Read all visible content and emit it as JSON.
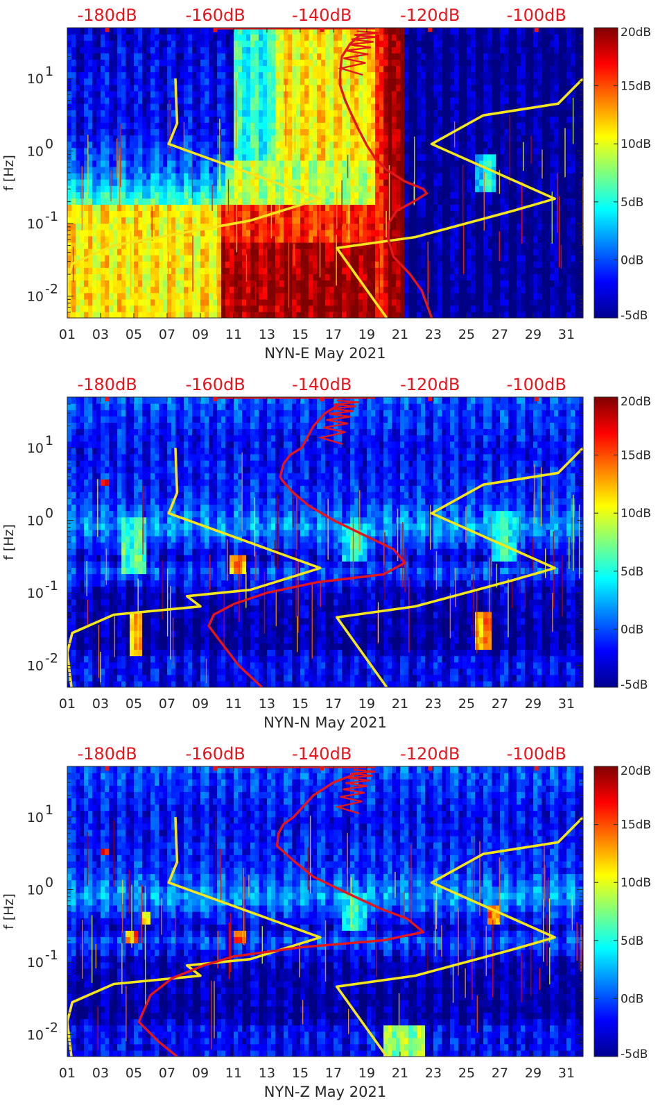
{
  "chart_data": [
    {
      "type": "heatmap",
      "title": "NYN-E May 2021",
      "xlabel": "NYN-E May 2021",
      "ylabel": "f [Hz]",
      "x_ticks": [
        "01",
        "03",
        "05",
        "07",
        "09",
        "11",
        "13",
        "15",
        "17",
        "19",
        "21",
        "23",
        "25",
        "27",
        "29",
        "31"
      ],
      "y_ticks": [
        {
          "value": 0.01,
          "base": "10",
          "exp": "-2"
        },
        {
          "value": 0.1,
          "base": "10",
          "exp": "-1"
        },
        {
          "value": 1,
          "base": "10",
          "exp": "0"
        },
        {
          "value": 10,
          "base": "10",
          "exp": "1"
        }
      ],
      "top_ticks": [
        "-180dB",
        "-160dB",
        "-140dB",
        "-120dB",
        "-100dB"
      ],
      "top_tick_days": [
        3.4,
        9.9,
        16.3,
        22.8,
        29.2
      ],
      "colorbar": {
        "ticks": [
          "20dB",
          "15dB",
          "10dB",
          "5dB",
          "0dB",
          "-5dB"
        ],
        "range_db": [
          -5,
          20
        ]
      },
      "xlim_days": [
        1,
        32
      ],
      "ylim_hz": [
        0.005,
        50
      ],
      "background_db_profile": [
        {
          "hz": 0.005,
          "db": 14
        },
        {
          "hz": 0.03,
          "db": 12
        },
        {
          "hz": 0.1,
          "db": 7
        },
        {
          "hz": 0.2,
          "db": 6
        },
        {
          "hz": 0.5,
          "db": 1
        },
        {
          "hz": 2,
          "db": -2
        },
        {
          "hz": 10,
          "db": -2
        },
        {
          "hz": 50,
          "db": -3
        }
      ],
      "regions": [
        {
          "d0": 1,
          "d1": 10.2,
          "f0": 0.005,
          "f1": 0.18,
          "db": 11
        },
        {
          "d0": 10.2,
          "d1": 13.8,
          "f0": 0.005,
          "f1": 0.055,
          "db": 19
        },
        {
          "d0": 13.8,
          "d1": 21.3,
          "f0": 0.005,
          "f1": 0.2,
          "db": 19.5
        },
        {
          "d0": 10.2,
          "d1": 21.3,
          "f0": 0.055,
          "f1": 0.2,
          "db": 16
        },
        {
          "d0": 10.5,
          "d1": 19.5,
          "f0": 0.2,
          "f1": 0.8,
          "db": 9
        },
        {
          "d0": 13.5,
          "d1": 19.5,
          "f0": 0.8,
          "f1": 50,
          "db": 11
        },
        {
          "d0": 11,
          "d1": 13.5,
          "f0": 0.8,
          "f1": 50,
          "db": 5
        },
        {
          "d0": 19.5,
          "d1": 20.3,
          "f0": 0.005,
          "f1": 50,
          "db": 17
        },
        {
          "d0": 20.3,
          "d1": 21.3,
          "f0": 0.005,
          "f1": 50,
          "db": 20
        },
        {
          "d0": 21.3,
          "d1": 32,
          "f0": 0.005,
          "f1": 50,
          "db": -4.5
        },
        {
          "d0": 25.5,
          "d1": 26.7,
          "f0": 0.3,
          "f1": 0.9,
          "db": 4
        }
      ],
      "yellow_curves": [
        {
          "name": "noise model left",
          "points": [
            [
              7.5,
              10
            ],
            [
              7.6,
              2.4
            ],
            [
              7.1,
              1.25
            ],
            [
              16.2,
              0.22
            ],
            [
              12,
              0.11
            ],
            [
              3.8,
              0.05
            ],
            [
              1.3,
              0.028
            ],
            [
              1.0,
              0.015
            ],
            [
              1.25,
              0.005
            ]
          ]
        },
        {
          "name": "noise model right",
          "points": [
            [
              32,
              10
            ],
            [
              30.5,
              4.5
            ],
            [
              26,
              3.1
            ],
            [
              22.9,
              1.25
            ],
            [
              30.3,
              0.22
            ],
            [
              27.8,
              0.15
            ],
            [
              21.9,
              0.065
            ],
            [
              17.2,
              0.046
            ],
            [
              20.2,
              0.005
            ]
          ]
        }
      ],
      "red_curve": {
        "name": "station PSD",
        "points": [
          [
            18.6,
            40
          ],
          [
            18,
            30
          ],
          [
            17.5,
            20
          ],
          [
            17.4,
            12
          ],
          [
            17.4,
            8
          ],
          [
            17.7,
            5
          ],
          [
            18,
            3.5
          ],
          [
            18.5,
            2
          ],
          [
            19,
            1.2
          ],
          [
            19.5,
            0.8
          ],
          [
            20.2,
            0.55
          ],
          [
            21.3,
            0.38
          ],
          [
            22.4,
            0.3
          ],
          [
            22.6,
            0.26
          ],
          [
            21.8,
            0.2
          ],
          [
            20.8,
            0.15
          ],
          [
            20.3,
            0.1
          ],
          [
            20.3,
            0.06
          ],
          [
            20.6,
            0.035
          ],
          [
            21.6,
            0.02
          ],
          [
            22.3,
            0.012
          ],
          [
            22.9,
            0.005
          ]
        ]
      }
    },
    {
      "type": "heatmap",
      "title": "NYN-N May 2021",
      "xlabel": "NYN-N May 2021",
      "ylabel": "f [Hz]",
      "x_ticks": [
        "01",
        "03",
        "05",
        "07",
        "09",
        "11",
        "13",
        "15",
        "17",
        "19",
        "21",
        "23",
        "25",
        "27",
        "29",
        "31"
      ],
      "y_ticks": [
        {
          "value": 0.01,
          "base": "10",
          "exp": "-2"
        },
        {
          "value": 0.1,
          "base": "10",
          "exp": "-1"
        },
        {
          "value": 1,
          "base": "10",
          "exp": "0"
        },
        {
          "value": 10,
          "base": "10",
          "exp": "1"
        }
      ],
      "top_ticks": [
        "-180dB",
        "-160dB",
        "-140dB",
        "-120dB",
        "-100dB"
      ],
      "top_tick_days": [
        3.4,
        9.9,
        16.3,
        22.8,
        29.2
      ],
      "colorbar": {
        "ticks": [
          "20dB",
          "15dB",
          "10dB",
          "5dB",
          "0dB",
          "-5dB"
        ],
        "range_db": [
          -5,
          20
        ]
      },
      "xlim_days": [
        1,
        32
      ],
      "ylim_hz": [
        0.005,
        50
      ],
      "background_db_profile": [
        {
          "hz": 0.005,
          "db": -2
        },
        {
          "hz": 0.014,
          "db": -2
        },
        {
          "hz": 0.016,
          "db": -4.5
        },
        {
          "hz": 0.1,
          "db": -3.5
        },
        {
          "hz": 0.2,
          "db": 0
        },
        {
          "hz": 0.3,
          "db": -3
        },
        {
          "hz": 0.8,
          "db": 2
        },
        {
          "hz": 2,
          "db": -1
        },
        {
          "hz": 10,
          "db": -2
        },
        {
          "hz": 50,
          "db": 0
        }
      ],
      "regions": [
        {
          "d0": 4.3,
          "d1": 5.8,
          "f0": 0.2,
          "f1": 1.2,
          "db": 6
        },
        {
          "d0": 10.8,
          "d1": 11.8,
          "f0": 0.2,
          "f1": 0.32,
          "db": 13
        },
        {
          "d0": 17.5,
          "d1": 19,
          "f0": 0.3,
          "f1": 1.0,
          "db": 5
        },
        {
          "d0": 26.5,
          "d1": 28,
          "f0": 0.3,
          "f1": 1.5,
          "db": 5
        },
        {
          "d0": 25.6,
          "d1": 26.6,
          "f0": 0.018,
          "f1": 0.05,
          "db": 13
        },
        {
          "d0": 4.8,
          "d1": 5.4,
          "f0": 0.015,
          "f1": 0.06,
          "db": 12
        },
        {
          "d0": 3.1,
          "d1": 3.5,
          "f0": 3.2,
          "f1": 3.8,
          "db": 16
        }
      ],
      "yellow_curves": [
        {
          "name": "noise model left",
          "points": [
            [
              7.5,
              10
            ],
            [
              7.6,
              2.4
            ],
            [
              7.1,
              1.25
            ],
            [
              16.2,
              0.22
            ],
            [
              12,
              0.11
            ],
            [
              8.2,
              0.09
            ],
            [
              9.0,
              0.065
            ],
            [
              3.8,
              0.05
            ],
            [
              1.3,
              0.028
            ],
            [
              1.0,
              0.015
            ],
            [
              1.25,
              0.005
            ]
          ]
        },
        {
          "name": "noise model right",
          "points": [
            [
              32,
              10
            ],
            [
              30.5,
              4.5
            ],
            [
              26,
              3.1
            ],
            [
              22.9,
              1.25
            ],
            [
              30.3,
              0.22
            ],
            [
              27.8,
              0.15
            ],
            [
              21.9,
              0.065
            ],
            [
              17.2,
              0.046
            ],
            [
              20.2,
              0.005
            ]
          ]
        }
      ],
      "red_curve": {
        "name": "station PSD",
        "points": [
          [
            17.4,
            40
          ],
          [
            16.5,
            30
          ],
          [
            15.8,
            20
          ],
          [
            15.1,
            10
          ],
          [
            14.4,
            8
          ],
          [
            14,
            6
          ],
          [
            13.8,
            4
          ],
          [
            13.9,
            3.6
          ],
          [
            14.5,
            2.5
          ],
          [
            15.5,
            1.6
          ],
          [
            17,
            1.0
          ],
          [
            19,
            0.6
          ],
          [
            20.6,
            0.4
          ],
          [
            21.3,
            0.26
          ],
          [
            20,
            0.18
          ],
          [
            16,
            0.14
          ],
          [
            13,
            0.1
          ],
          [
            11,
            0.07
          ],
          [
            9.8,
            0.05
          ],
          [
            9.5,
            0.035
          ],
          [
            10.3,
            0.02
          ],
          [
            11.3,
            0.01
          ],
          [
            12.7,
            0.005
          ]
        ]
      }
    },
    {
      "type": "heatmap",
      "title": "NYN-Z May 2021",
      "xlabel": "NYN-Z May 2021",
      "ylabel": "f [Hz]",
      "x_ticks": [
        "01",
        "03",
        "05",
        "07",
        "09",
        "11",
        "13",
        "15",
        "17",
        "19",
        "21",
        "23",
        "25",
        "27",
        "29",
        "31"
      ],
      "y_ticks": [
        {
          "value": 0.01,
          "base": "10",
          "exp": "-2"
        },
        {
          "value": 0.1,
          "base": "10",
          "exp": "-1"
        },
        {
          "value": 1,
          "base": "10",
          "exp": "0"
        },
        {
          "value": 10,
          "base": "10",
          "exp": "1"
        }
      ],
      "top_ticks": [
        "-180dB",
        "-160dB",
        "-140dB",
        "-120dB",
        "-100dB"
      ],
      "top_tick_days": [
        3.4,
        9.9,
        16.3,
        22.8,
        29.2
      ],
      "colorbar": {
        "ticks": [
          "20dB",
          "15dB",
          "10dB",
          "5dB",
          "0dB",
          "-5dB"
        ],
        "range_db": [
          -5,
          20
        ]
      },
      "xlim_days": [
        1,
        32
      ],
      "ylim_hz": [
        0.005,
        50
      ],
      "background_db_profile": [
        {
          "hz": 0.005,
          "db": -2
        },
        {
          "hz": 0.014,
          "db": -2
        },
        {
          "hz": 0.016,
          "db": -4.5
        },
        {
          "hz": 0.1,
          "db": -3.5
        },
        {
          "hz": 0.2,
          "db": 0
        },
        {
          "hz": 0.3,
          "db": -3
        },
        {
          "hz": 0.8,
          "db": 2
        },
        {
          "hz": 2,
          "db": -1
        },
        {
          "hz": 10,
          "db": -2
        },
        {
          "hz": 50,
          "db": 0
        }
      ],
      "regions": [
        {
          "d0": 4.5,
          "d1": 5.2,
          "f0": 0.2,
          "f1": 0.3,
          "db": 14
        },
        {
          "d0": 5.4,
          "d1": 6.0,
          "f0": 0.35,
          "f1": 0.5,
          "db": 12
        },
        {
          "d0": 10.9,
          "d1": 11.8,
          "f0": 0.2,
          "f1": 0.3,
          "db": 14
        },
        {
          "d0": 26.3,
          "d1": 27,
          "f0": 0.35,
          "f1": 0.6,
          "db": 14
        },
        {
          "d0": 17.5,
          "d1": 19,
          "f0": 0.3,
          "f1": 1.0,
          "db": 5
        },
        {
          "d0": 20,
          "d1": 22.5,
          "f0": 0.005,
          "f1": 0.015,
          "db": 8
        },
        {
          "d0": 3.1,
          "d1": 3.5,
          "f0": 3.2,
          "f1": 3.8,
          "db": 16
        }
      ],
      "yellow_curves": [
        {
          "name": "noise model left",
          "points": [
            [
              7.5,
              10
            ],
            [
              7.6,
              2.4
            ],
            [
              7.1,
              1.25
            ],
            [
              16.2,
              0.22
            ],
            [
              12,
              0.11
            ],
            [
              8.2,
              0.09
            ],
            [
              9.0,
              0.065
            ],
            [
              3.8,
              0.05
            ],
            [
              1.3,
              0.028
            ],
            [
              1.0,
              0.015
            ],
            [
              1.25,
              0.005
            ]
          ]
        },
        {
          "name": "noise model right",
          "points": [
            [
              32,
              10
            ],
            [
              30.5,
              4.5
            ],
            [
              26,
              3.1
            ],
            [
              22.9,
              1.25
            ],
            [
              30.3,
              0.22
            ],
            [
              27.8,
              0.15
            ],
            [
              21.9,
              0.065
            ],
            [
              17.2,
              0.046
            ],
            [
              20.2,
              0.005
            ]
          ]
        }
      ],
      "red_curve": {
        "name": "station PSD",
        "points": [
          [
            18.4,
            40
          ],
          [
            17,
            30
          ],
          [
            15.8,
            20
          ],
          [
            14.6,
            10
          ],
          [
            14,
            8
          ],
          [
            13.7,
            6
          ],
          [
            13.6,
            4
          ],
          [
            13.9,
            3.5
          ],
          [
            14.6,
            2.5
          ],
          [
            15.8,
            1.5
          ],
          [
            17.8,
            0.9
          ],
          [
            19.8,
            0.55
          ],
          [
            21.4,
            0.4
          ],
          [
            22.4,
            0.26
          ],
          [
            20,
            0.2
          ],
          [
            15,
            0.16
          ],
          [
            11,
            0.12
          ],
          [
            9.2,
            0.09
          ],
          [
            7.3,
            0.06
          ],
          [
            6.0,
            0.035
          ],
          [
            5.3,
            0.015
          ],
          [
            6.5,
            0.008
          ],
          [
            7.6,
            0.005
          ]
        ]
      }
    }
  ]
}
